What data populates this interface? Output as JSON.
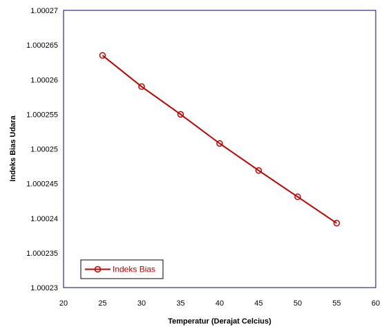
{
  "chart_data": {
    "type": "line",
    "title": "",
    "xlabel": "Temperatur (Derajat Celcius)",
    "ylabel": "Indeks Bias Udara",
    "xlim": [
      20,
      60
    ],
    "ylim": [
      1.00023,
      1.00027
    ],
    "x_ticks": [
      "20",
      "25",
      "30",
      "35",
      "40",
      "45",
      "50",
      "55",
      "60"
    ],
    "y_ticks": [
      "1.00023",
      "1.000235",
      "1.00024",
      "1.000245",
      "1.00025",
      "1.000255",
      "1.00026",
      "1.000265",
      "1.00027"
    ],
    "grid": false,
    "legend_position": "bottom-left",
    "series": [
      {
        "name": "Indeks Bias",
        "color": "#c00000",
        "marker": "open-circle",
        "x": [
          25,
          30,
          35,
          40,
          45,
          50,
          55
        ],
        "y": [
          1.0002635,
          1.000259,
          1.000255,
          1.0002508,
          1.0002469,
          1.0002431,
          1.0002393
        ]
      }
    ]
  },
  "colors": {
    "plot_border": "#000080",
    "line": "#c00000",
    "background": "#ffffff"
  }
}
